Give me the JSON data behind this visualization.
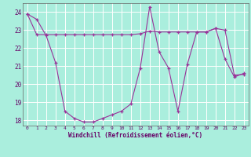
{
  "xlabel": "Windchill (Refroidissement éolien,°C)",
  "bg_color": "#aaeedd",
  "grid_color": "#bbddcc",
  "line_color": "#993399",
  "xlim": [
    -0.5,
    23.5
  ],
  "ylim": [
    17.7,
    24.5
  ],
  "xticks": [
    0,
    1,
    2,
    3,
    4,
    5,
    6,
    7,
    8,
    9,
    10,
    11,
    12,
    13,
    14,
    15,
    16,
    17,
    18,
    19,
    20,
    21,
    22,
    23
  ],
  "yticks": [
    18,
    19,
    20,
    21,
    22,
    23,
    24
  ],
  "line1_x": [
    0,
    1,
    2,
    3,
    4,
    5,
    6,
    7,
    8,
    9,
    10,
    11,
    12,
    13,
    14,
    15,
    16,
    17,
    18,
    19,
    20,
    21,
    22,
    23
  ],
  "line1_y": [
    23.9,
    23.6,
    22.7,
    21.2,
    18.5,
    18.1,
    17.9,
    17.9,
    18.1,
    18.3,
    18.5,
    18.9,
    20.9,
    24.3,
    21.8,
    20.9,
    18.5,
    21.1,
    22.9,
    22.9,
    23.1,
    21.4,
    20.4,
    20.6
  ],
  "line2_x": [
    0,
    1,
    2,
    3,
    4,
    5,
    6,
    7,
    8,
    9,
    10,
    11,
    12,
    13,
    14,
    15,
    16,
    17,
    18,
    19,
    20,
    21,
    22,
    23
  ],
  "line2_y": [
    23.9,
    22.75,
    22.75,
    22.75,
    22.75,
    22.75,
    22.75,
    22.75,
    22.75,
    22.75,
    22.75,
    22.75,
    22.8,
    22.95,
    22.9,
    22.9,
    22.9,
    22.9,
    22.9,
    22.9,
    23.1,
    23.0,
    20.5,
    20.55
  ]
}
